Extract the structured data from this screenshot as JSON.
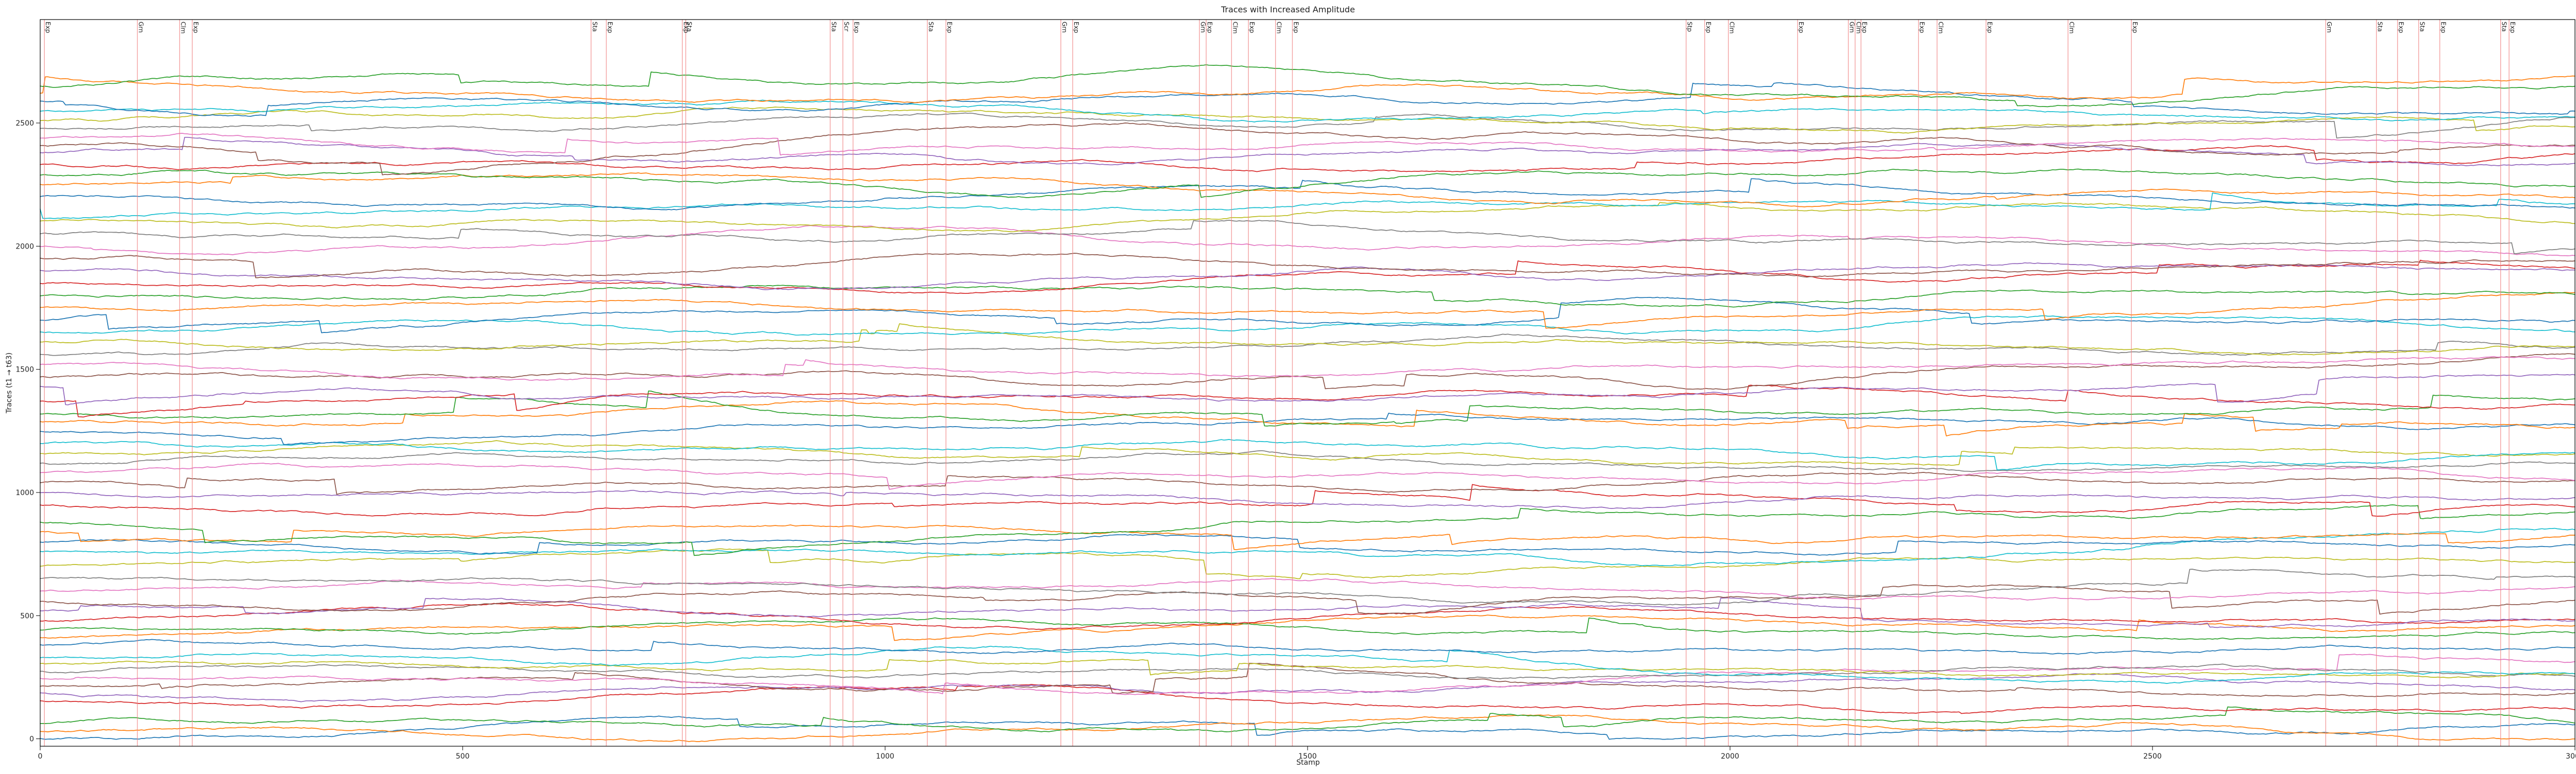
{
  "chart_data": {
    "type": "line",
    "title": "Traces with Increased Amplitude",
    "xlabel": "Stamp",
    "ylabel": "Traces (t1 → t63)",
    "xlim": [
      0,
      3000
    ],
    "ylim": [
      -30,
      2920
    ],
    "x_ticks": [
      0,
      500,
      1000,
      1500,
      2000,
      2500,
      3000
    ],
    "y_ticks": [
      0,
      500,
      1000,
      1500,
      2000,
      2500
    ],
    "grid": false,
    "legend": "none",
    "n_points": 3000,
    "trace_count": 63,
    "trace_offsets": [
      0,
      30,
      60,
      155,
      185,
      215,
      245,
      275,
      305,
      330,
      380,
      410,
      440,
      480,
      520,
      560,
      600,
      650,
      700,
      760,
      800,
      840,
      880,
      950,
      1000,
      1040,
      1080,
      1120,
      1160,
      1200,
      1250,
      1290,
      1320,
      1370,
      1430,
      1470,
      1520,
      1560,
      1610,
      1650,
      1700,
      1750,
      1800,
      1850,
      1900,
      1950,
      2000,
      2050,
      2100,
      2150,
      2200,
      2250,
      2290,
      2330,
      2380,
      2410,
      2440,
      2480,
      2510,
      2550,
      2590,
      2620,
      2650
    ],
    "trace_colors": [
      "#1f77b4",
      "#ff7f0e",
      "#2ca02c",
      "#d62728",
      "#9467bd",
      "#8c564b",
      "#e377c2",
      "#7f7f7f",
      "#bcbd22",
      "#17becf"
    ],
    "annotation_color": "#f08080",
    "annotations": [
      {
        "x": 5,
        "label": "Exp"
      },
      {
        "x": 115,
        "label": "Grn"
      },
      {
        "x": 165,
        "label": "Clm"
      },
      {
        "x": 180,
        "label": "Exp"
      },
      {
        "x": 652,
        "label": "Sta"
      },
      {
        "x": 670,
        "label": "Exp"
      },
      {
        "x": 760,
        "label": "Exp"
      },
      {
        "x": 764,
        "label": "Sta"
      },
      {
        "x": 935,
        "label": "Sta"
      },
      {
        "x": 950,
        "label": "Scr"
      },
      {
        "x": 962,
        "label": "Exp"
      },
      {
        "x": 1050,
        "label": "Sta"
      },
      {
        "x": 1072,
        "label": "Exp"
      },
      {
        "x": 1208,
        "label": "Grn"
      },
      {
        "x": 1222,
        "label": "Exp"
      },
      {
        "x": 1372,
        "label": "Grn"
      },
      {
        "x": 1380,
        "label": "Exp"
      },
      {
        "x": 1410,
        "label": "Clm"
      },
      {
        "x": 1430,
        "label": "Exp"
      },
      {
        "x": 1462,
        "label": "Clm"
      },
      {
        "x": 1482,
        "label": "Exp"
      },
      {
        "x": 1948,
        "label": "Stp"
      },
      {
        "x": 1970,
        "label": "Exp"
      },
      {
        "x": 1998,
        "label": "Clm"
      },
      {
        "x": 2080,
        "label": "Exp"
      },
      {
        "x": 2140,
        "label": "Grn"
      },
      {
        "x": 2148,
        "label": "Clm"
      },
      {
        "x": 2155,
        "label": "Exp"
      },
      {
        "x": 2223,
        "label": "Exp"
      },
      {
        "x": 2245,
        "label": "Clm"
      },
      {
        "x": 2303,
        "label": "Exp"
      },
      {
        "x": 2400,
        "label": "Clm"
      },
      {
        "x": 2475,
        "label": "Exp"
      },
      {
        "x": 2705,
        "label": "Grn"
      },
      {
        "x": 2765,
        "label": "Sta"
      },
      {
        "x": 2790,
        "label": "Exp"
      },
      {
        "x": 2815,
        "label": "Sta"
      },
      {
        "x": 2840,
        "label": "Exp"
      },
      {
        "x": 2912,
        "label": "Sta"
      },
      {
        "x": 2922,
        "label": "Exp"
      }
    ]
  }
}
